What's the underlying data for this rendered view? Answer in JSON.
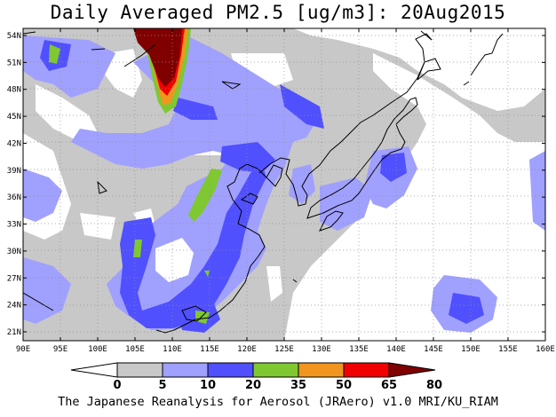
{
  "title": "Daily Averaged PM2.5 [ug/m3]: 20Aug2015",
  "footer": "The Japanese Reanalysis for Aerosol (JRAero) v1.0 MRI/KU_RIAM",
  "lat_ticks": [
    "54N",
    "51N",
    "48N",
    "45N",
    "42N",
    "39N",
    "36N",
    "33N",
    "30N",
    "27N",
    "24N",
    "21N"
  ],
  "lon_ticks": [
    "90E",
    "95E",
    "100E",
    "105E",
    "110E",
    "115E",
    "120E",
    "125E",
    "130E",
    "135E",
    "140E",
    "145E",
    "150E",
    "155E",
    "160E"
  ],
  "colorbar": {
    "labels": [
      "0",
      "5",
      "10",
      "20",
      "35",
      "50",
      "65",
      "80"
    ],
    "colors": [
      "#ffffff",
      "#c8c8c8",
      "#a0a0ff",
      "#5050ff",
      "#7fc832",
      "#f0961e",
      "#f00000",
      "#800000"
    ]
  },
  "palette": {
    "bin0": "#ffffff",
    "bin5": "#c8c8c8",
    "bin10": "#a0a0ff",
    "bin20": "#5050ff",
    "bin35": "#7fc832",
    "bin50": "#f0961e",
    "bin65": "#f00000",
    "bin80": "#800000"
  }
}
